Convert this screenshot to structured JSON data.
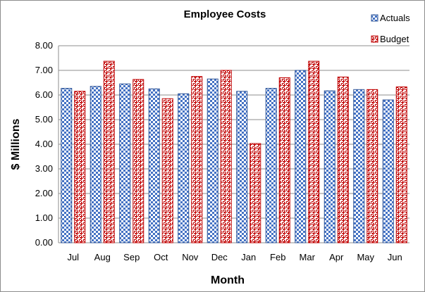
{
  "chart_data": {
    "type": "bar",
    "title": "Employee Costs",
    "xlabel": "Month",
    "ylabel": "$ Millions",
    "ylim": [
      0,
      8
    ],
    "yticks": [
      "0.00",
      "1.00",
      "2.00",
      "3.00",
      "4.00",
      "5.00",
      "6.00",
      "7.00",
      "8.00"
    ],
    "grid": true,
    "legend_position": "top-right",
    "categories": [
      "Jul",
      "Aug",
      "Sep",
      "Oct",
      "Nov",
      "Dec",
      "Jan",
      "Feb",
      "Mar",
      "Apr",
      "May",
      "Jun"
    ],
    "series": [
      {
        "name": "Actuals",
        "pattern": "checker",
        "color": "#4472c4",
        "values": [
          6.27,
          6.35,
          6.45,
          6.25,
          6.05,
          6.65,
          6.15,
          6.27,
          7.0,
          6.17,
          6.22,
          5.8
        ]
      },
      {
        "name": "Budget",
        "pattern": "weave",
        "color": "#c00000",
        "values": [
          6.15,
          7.37,
          6.63,
          5.85,
          6.75,
          7.0,
          4.03,
          6.7,
          7.37,
          6.73,
          6.22,
          6.33
        ]
      }
    ]
  }
}
